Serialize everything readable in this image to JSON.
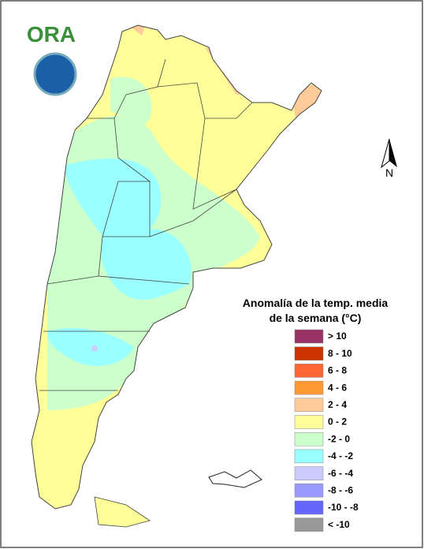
{
  "logo": {
    "text": "ORA"
  },
  "north_label": "N",
  "legend": {
    "title": [
      "Anomalía de la temp. media",
      "de la semana (°C)"
    ],
    "items": [
      {
        "label": "> 10",
        "color": "#993366"
      },
      {
        "label": "8 - 10",
        "color": "#cc3300"
      },
      {
        "label": "6 - 8",
        "color": "#ff6633"
      },
      {
        "label": "4 - 6",
        "color": "#ff9933"
      },
      {
        "label": "2 - 4",
        "color": "#ffcc99"
      },
      {
        "label": "0 - 2",
        "color": "#ffff99"
      },
      {
        "label": "-2 - 0",
        "color": "#ccffcc"
      },
      {
        "label": "-4 - -2",
        "color": "#99ffff"
      },
      {
        "label": "-6 - -4",
        "color": "#ccccff"
      },
      {
        "label": "-8 - -6",
        "color": "#9999ff"
      },
      {
        "label": "-10 - -8",
        "color": "#6666ff"
      },
      {
        "label": "< -10",
        "color": "#999999"
      }
    ]
  }
}
